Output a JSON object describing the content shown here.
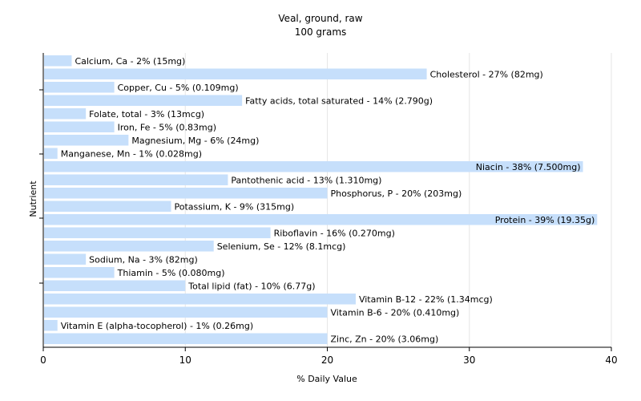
{
  "chart_data": {
    "type": "bar",
    "orientation": "horizontal",
    "title": "Veal, ground, raw",
    "subtitle": "100 grams",
    "xlabel": "% Daily Value",
    "ylabel": "Nutrient",
    "xlim": [
      0,
      40
    ],
    "xticks": [
      0,
      10,
      20,
      30,
      40
    ],
    "grid": true,
    "bar_color": "#c6dffb",
    "gridline_color": "#e6e6e6",
    "categories": [
      "Calcium, Ca",
      "Cholesterol",
      "Copper, Cu",
      "Fatty acids, total saturated",
      "Folate, total",
      "Iron, Fe",
      "Magnesium, Mg",
      "Manganese, Mn",
      "Niacin",
      "Pantothenic acid",
      "Phosphorus, P",
      "Potassium, K",
      "Protein",
      "Riboflavin",
      "Selenium, Se",
      "Sodium, Na",
      "Thiamin",
      "Total lipid (fat)",
      "Vitamin B-12",
      "Vitamin B-6",
      "Vitamin E (alpha-tocopherol)",
      "Zinc, Zn"
    ],
    "values": [
      2,
      27,
      5,
      14,
      3,
      5,
      6,
      1,
      38,
      13,
      20,
      9,
      39,
      16,
      12,
      3,
      5,
      10,
      22,
      20,
      1,
      20
    ],
    "labels": [
      "Calcium, Ca - 2% (15mg)",
      "Cholesterol - 27% (82mg)",
      "Copper, Cu - 5% (0.109mg)",
      "Fatty acids, total saturated - 14% (2.790g)",
      "Folate, total - 3% (13mcg)",
      "Iron, Fe - 5% (0.83mg)",
      "Magnesium, Mg - 6% (24mg)",
      "Manganese, Mn - 1% (0.028mg)",
      "Niacin - 38% (7.500mg)",
      "Pantothenic acid - 13% (1.310mg)",
      "Phosphorus, P - 20% (203mg)",
      "Potassium, K - 9% (315mg)",
      "Protein - 39% (19.35g)",
      "Riboflavin - 16% (0.270mg)",
      "Selenium, Se - 12% (8.1mcg)",
      "Sodium, Na - 3% (82mg)",
      "Thiamin - 5% (0.080mg)",
      "Total lipid (fat) - 10% (6.77g)",
      "Vitamin B-12 - 22% (1.34mcg)",
      "Vitamin B-6 - 20% (0.410mg)",
      "Vitamin E (alpha-tocopherol) - 1% (0.26mg)",
      "Zinc, Zn - 20% (3.06mg)"
    ]
  }
}
